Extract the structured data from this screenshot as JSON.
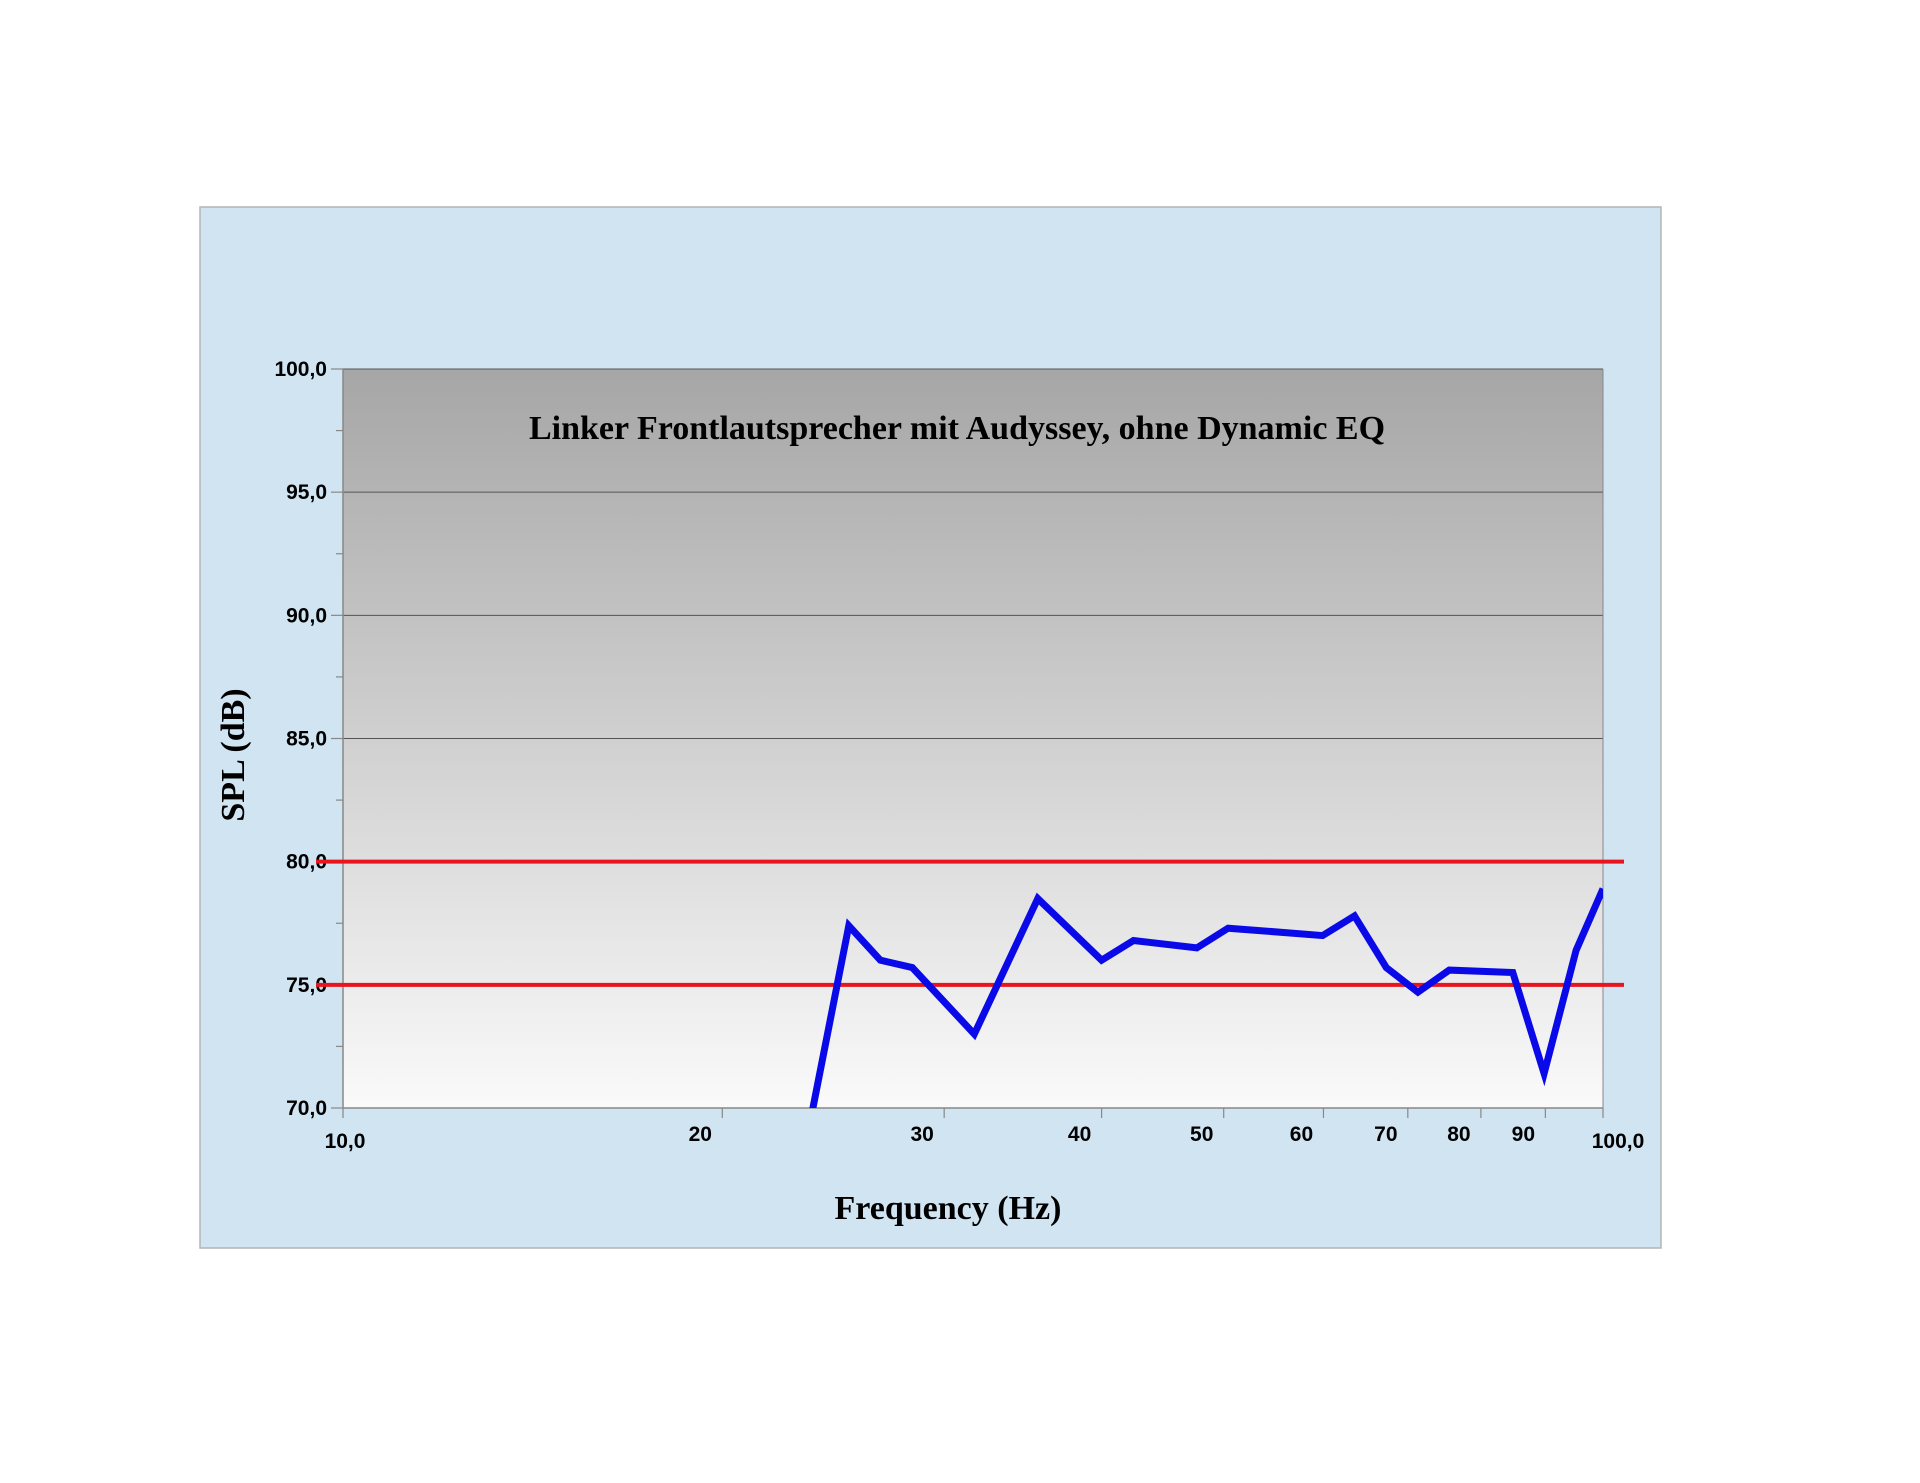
{
  "chart_data": {
    "type": "line",
    "title": "Linker Frontlautsprecher mit Audyssey, ohne Dynamic EQ",
    "xlabel": "Frequency (Hz)",
    "ylabel": "SPL (dB)",
    "x_scale": "log",
    "xlim": [
      10,
      100
    ],
    "ylim": [
      70,
      100
    ],
    "grid": "horizontal major gridlines",
    "legend": "none",
    "x_ticks": [
      {
        "value": 10,
        "label": "10,0"
      },
      {
        "value": 20,
        "label": "20"
      },
      {
        "value": 30,
        "label": "30"
      },
      {
        "value": 40,
        "label": "40"
      },
      {
        "value": 50,
        "label": "50"
      },
      {
        "value": 60,
        "label": "60"
      },
      {
        "value": 70,
        "label": "70"
      },
      {
        "value": 80,
        "label": "80"
      },
      {
        "value": 90,
        "label": "90"
      },
      {
        "value": 100,
        "label": "100,0"
      }
    ],
    "y_ticks": [
      {
        "value": 70,
        "label": "70,0"
      },
      {
        "value": 75,
        "label": "75,0"
      },
      {
        "value": 80,
        "label": "80,0"
      },
      {
        "value": 85,
        "label": "85,0"
      },
      {
        "value": 90,
        "label": "90,0"
      },
      {
        "value": 95,
        "label": "95,0"
      },
      {
        "value": 100,
        "label": "100,0"
      }
    ],
    "series": [
      {
        "color": "#0a0ae8",
        "x": [
          23.5,
          25.2,
          26.7,
          28.3,
          31.7,
          35.6,
          40.0,
          42.4,
          47.6,
          50.4,
          56.6,
          59.9,
          63.5,
          67.3,
          71.3,
          75.5,
          84.8,
          89.8,
          95.2,
          100.0
        ],
        "y": [
          69.5,
          77.4,
          76.0,
          75.7,
          73.0,
          78.5,
          76.0,
          76.8,
          76.5,
          77.3,
          77.1,
          77.0,
          77.8,
          75.7,
          74.7,
          75.6,
          75.5,
          71.4,
          76.4,
          78.9
        ]
      }
    ],
    "reference_lines": [
      {
        "y": 80,
        "color": "#e8141e"
      },
      {
        "y": 75,
        "color": "#e8141e"
      }
    ]
  },
  "colors": {
    "outer_panel": "#d0e4f2",
    "outer_border": "#b4b4b4",
    "plot_top": "#a6a6a6",
    "plot_bottom": "#fafafa",
    "gridline": "#555555",
    "axis": "#888888"
  }
}
